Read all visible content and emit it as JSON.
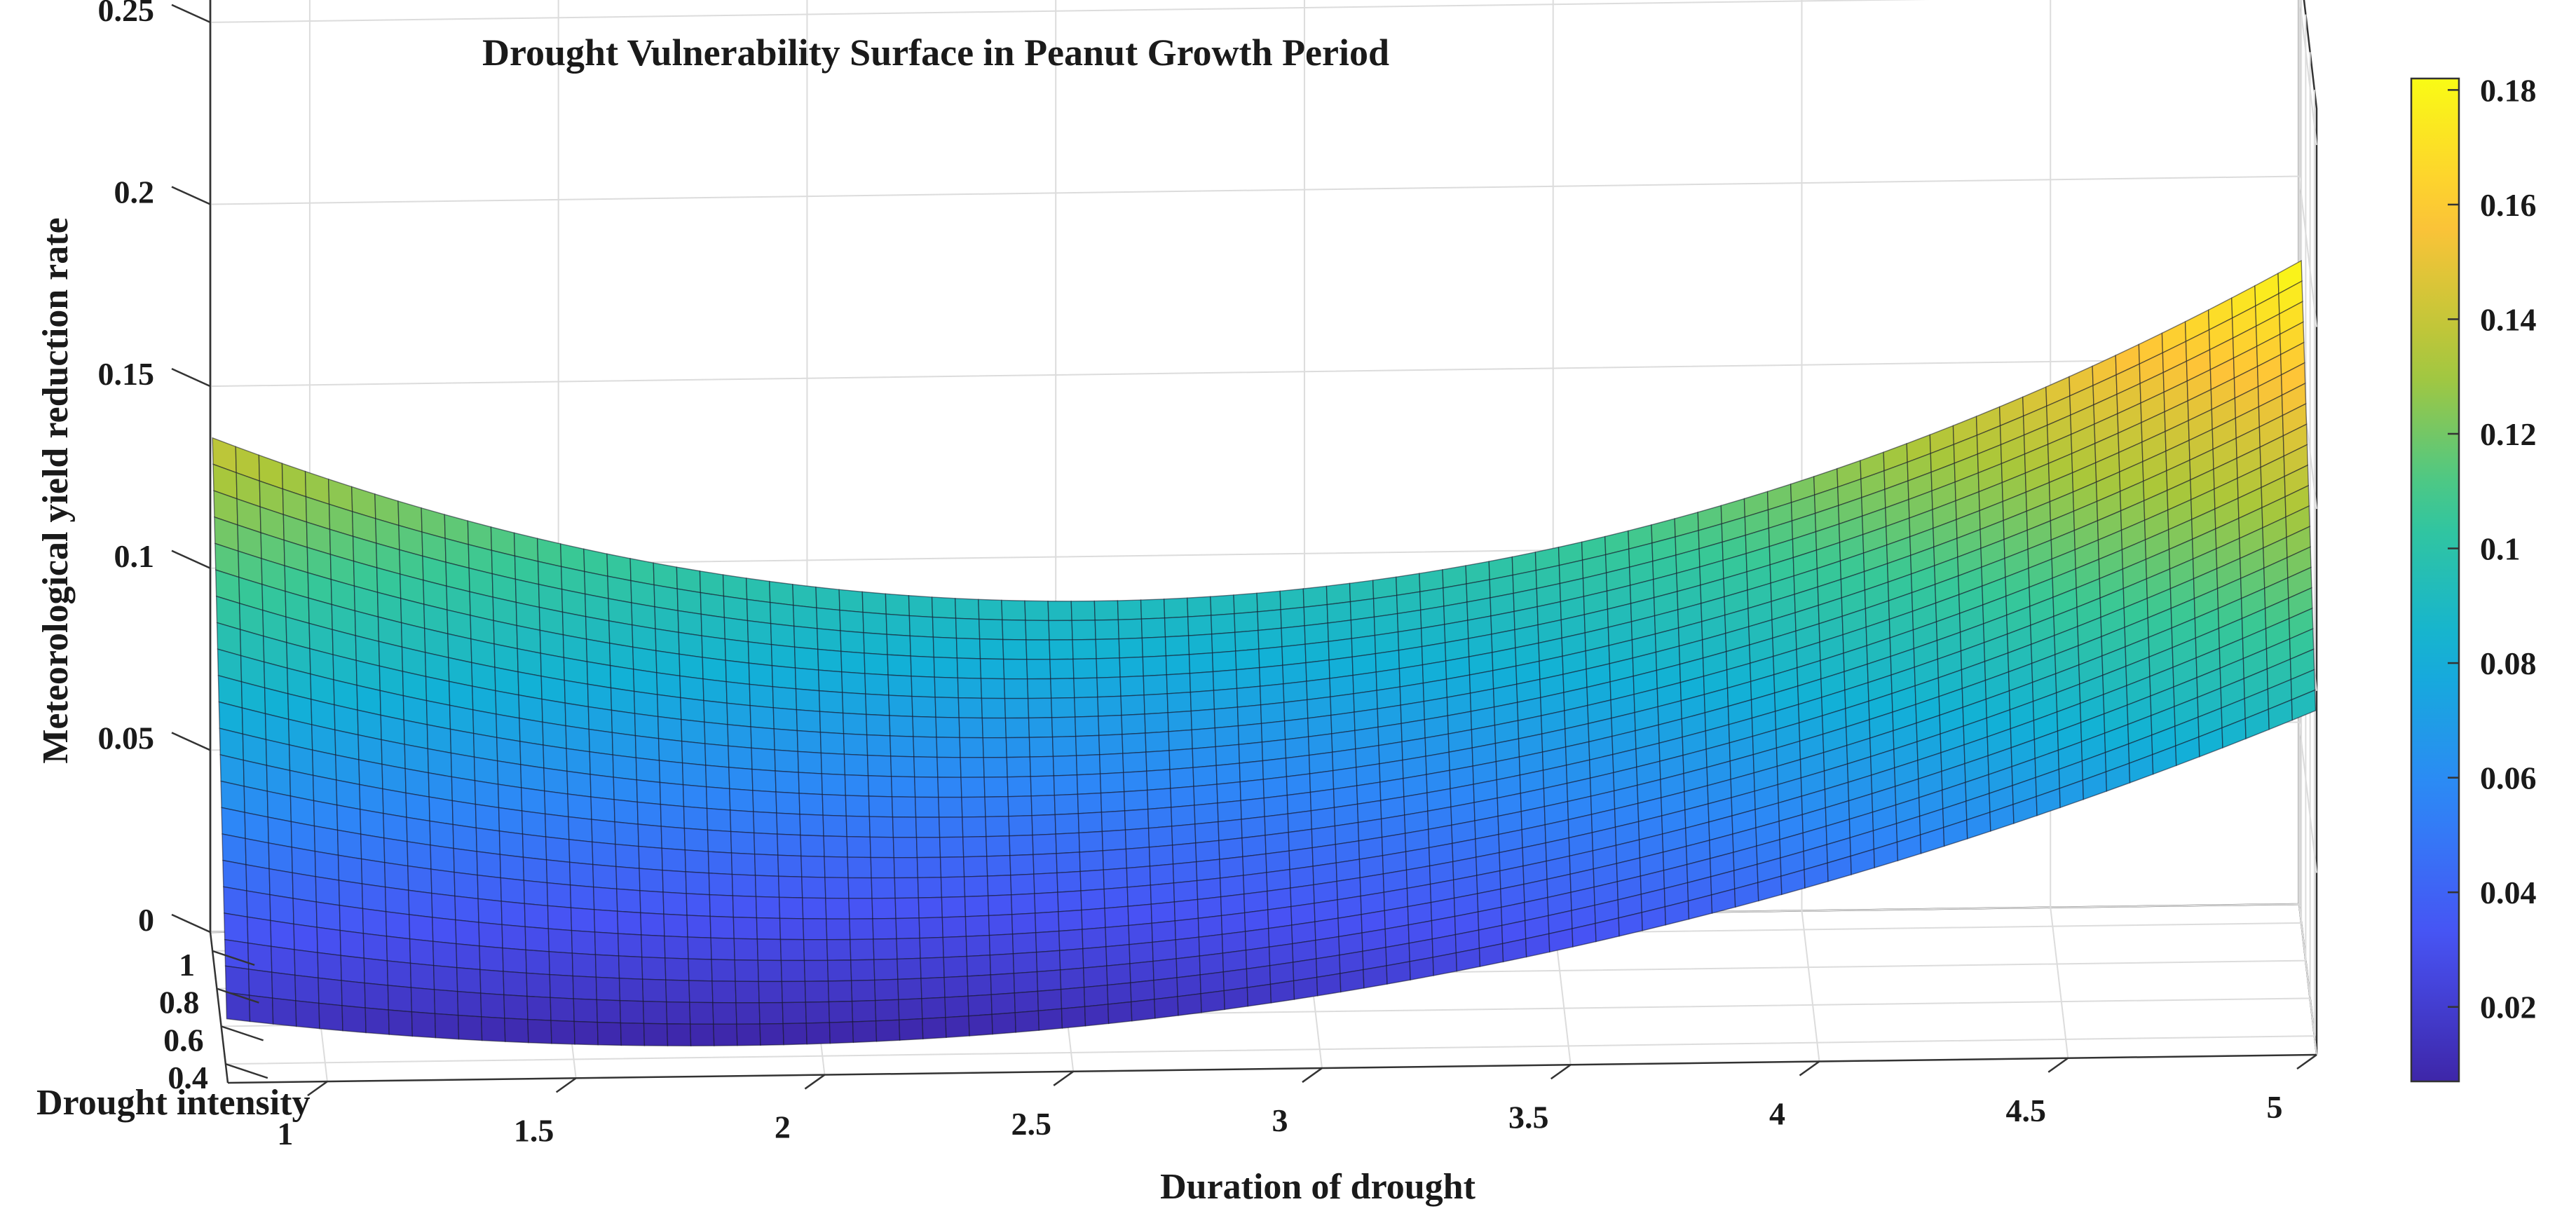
{
  "chart_data": {
    "type": "surface",
    "title": "Drought Vulnerability Surface in Peanut Growth Period",
    "xlabel": "Duration of drought",
    "ylabel": "Drought intensity",
    "zlabel": "Meteorological yield reduction rate",
    "x_ticks": [
      "1",
      "1.5",
      "2",
      "2.5",
      "3",
      "3.5",
      "4",
      "4.5",
      "5"
    ],
    "y_ticks": [
      "0.4",
      "0.6",
      "0.8",
      "1"
    ],
    "z_ticks": [
      "0",
      "0.05",
      "0.1",
      "0.15",
      "0.2",
      "0.25"
    ],
    "colorbar_ticks": [
      "0.02",
      "0.04",
      "0.06",
      "0.08",
      "0.1",
      "0.12",
      "0.14",
      "0.16",
      "0.18"
    ],
    "xlim": [
      0.8,
      5
    ],
    "ylim": [
      0.3,
      1.1
    ],
    "zlim": [
      0,
      0.26
    ],
    "clim": [
      0.007,
      0.182
    ],
    "colormap": "parula",
    "grid": true,
    "box": true,
    "samples": [
      {
        "x": 0.8,
        "y": 1.0,
        "z": 0.141
      },
      {
        "x": 0.8,
        "y": 0.35,
        "z": 0.015
      },
      {
        "x": 2.0,
        "y": 0.35,
        "z": 0.006
      },
      {
        "x": 2.0,
        "y": 1.0,
        "z": 0.098
      },
      {
        "x": 5.0,
        "y": 0.35,
        "z": 0.092
      },
      {
        "x": 5.0,
        "y": 1.0,
        "z": 0.182
      }
    ]
  }
}
